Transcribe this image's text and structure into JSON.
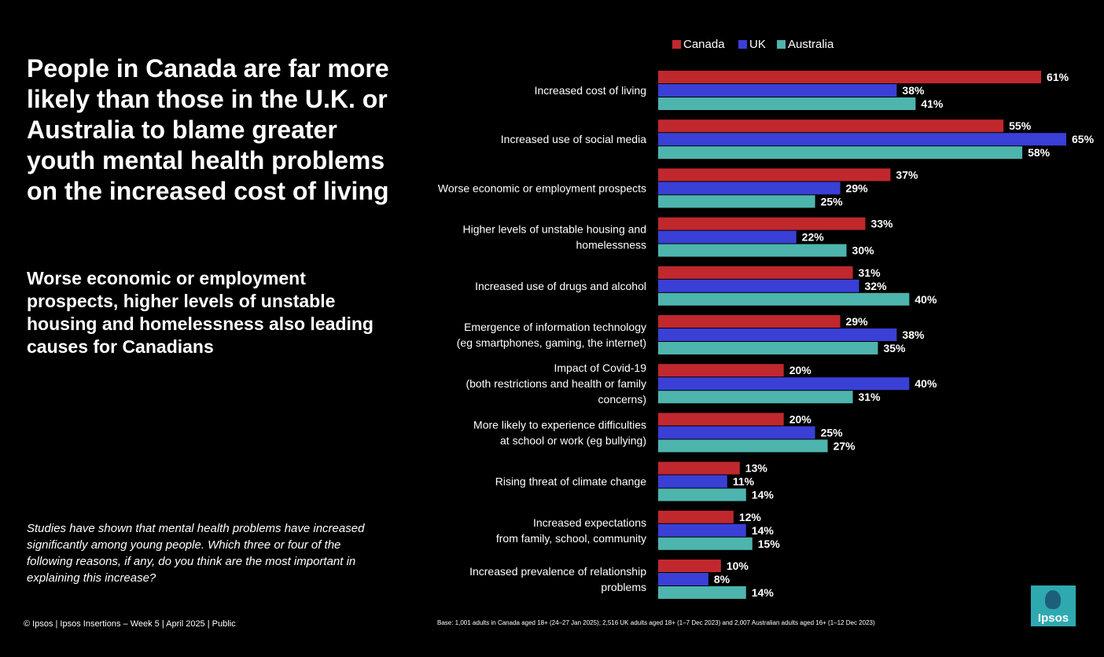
{
  "headline": "People in Canada are far more likely than those in the U.K. or Australia to blame greater youth mental health problems on the increased cost of living",
  "subheadline": "Worse economic or employment prospects, higher levels of unstable housing and homelessness also leading causes for Canadians",
  "question": "Studies have shown that mental health problems have increased significantly among young people. Which three or four of the following reasons, if any, do you think are the most important in explaining this increase?",
  "footer": "© Ipsos | Ipsos Insertions – Week 5 | April  2025 | Public",
  "base_note": "Base: 1,001 adults in Canada aged 18+ (24–27 Jan 2025); 2,516 UK adults aged 18+ (1–7 Dec 2023) and 2,007 Australian adults aged 16+ (1–12 Dec 2023)",
  "logo_text": "Ipsos",
  "colors": {
    "Canada": "#c0282d",
    "UK": "#3a3fd6",
    "Australia": "#4db5ad",
    "background": "#000000"
  },
  "chart_data": {
    "type": "bar",
    "orientation": "horizontal",
    "value_suffix": "%",
    "legend_position": "top",
    "grid": false,
    "xlim": [
      0,
      65
    ],
    "categories": [
      [
        "Increased cost of living"
      ],
      [
        "Increased use of social media"
      ],
      [
        "Worse economic or employment prospects"
      ],
      [
        "Higher levels of unstable housing and",
        "homelessness"
      ],
      [
        "Increased use of drugs and alcohol"
      ],
      [
        "Emergence of information technology",
        "(eg smartphones, gaming, the internet)"
      ],
      [
        "Impact of Covid-19",
        "(both restrictions and health or family",
        "concerns)"
      ],
      [
        "More likely to experience difficulties",
        "at school or work (eg bullying)"
      ],
      [
        "Rising threat of climate change"
      ],
      [
        "Increased expectations",
        "from family, school, community"
      ],
      [
        "Increased prevalence of relationship",
        "problems"
      ]
    ],
    "series": [
      {
        "name": "Canada",
        "values": [
          61,
          55,
          37,
          33,
          31,
          29,
          20,
          20,
          13,
          12,
          10
        ]
      },
      {
        "name": "UK",
        "values": [
          38,
          65,
          29,
          22,
          32,
          38,
          40,
          25,
          11,
          14,
          8
        ]
      },
      {
        "name": "Australia",
        "values": [
          41,
          58,
          25,
          30,
          40,
          35,
          31,
          27,
          14,
          15,
          14
        ]
      }
    ]
  }
}
